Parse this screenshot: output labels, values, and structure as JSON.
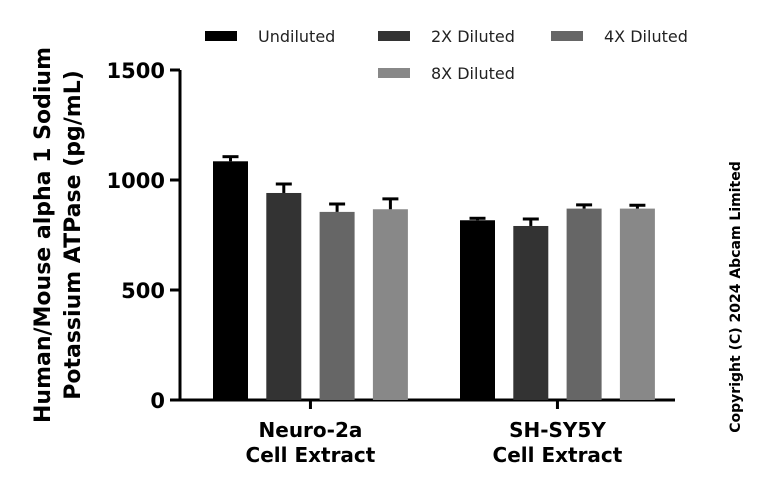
{
  "chart_data": {
    "type": "bar",
    "ylabel": [
      "Human/Mouse alpha 1 Sodium",
      "Potassium ATPase (pg/mL)"
    ],
    "ylim": [
      0,
      1500
    ],
    "yticks": [
      0,
      500,
      1000,
      1500
    ],
    "categories": [
      [
        "Neuro-2a",
        "Cell Extract"
      ],
      [
        "SH-SY5Y",
        "Cell Extract"
      ]
    ],
    "legend_position": "top",
    "series": [
      {
        "name": "Undiluted",
        "color": "#000000",
        "values": [
          1085,
          817
        ],
        "errors": [
          21,
          9
        ]
      },
      {
        "name": "2X Diluted",
        "color": "#333333",
        "values": [
          941,
          791
        ],
        "errors": [
          41,
          32
        ]
      },
      {
        "name": "4X Diluted",
        "color": "#666666",
        "values": [
          855,
          870
        ],
        "errors": [
          36,
          17
        ]
      },
      {
        "name": "8X Diluted",
        "color": "#888888",
        "values": [
          867,
          870
        ],
        "errors": [
          47,
          15
        ]
      }
    ]
  },
  "copyright": "Copyright (C) 2024 Abcam Limited"
}
